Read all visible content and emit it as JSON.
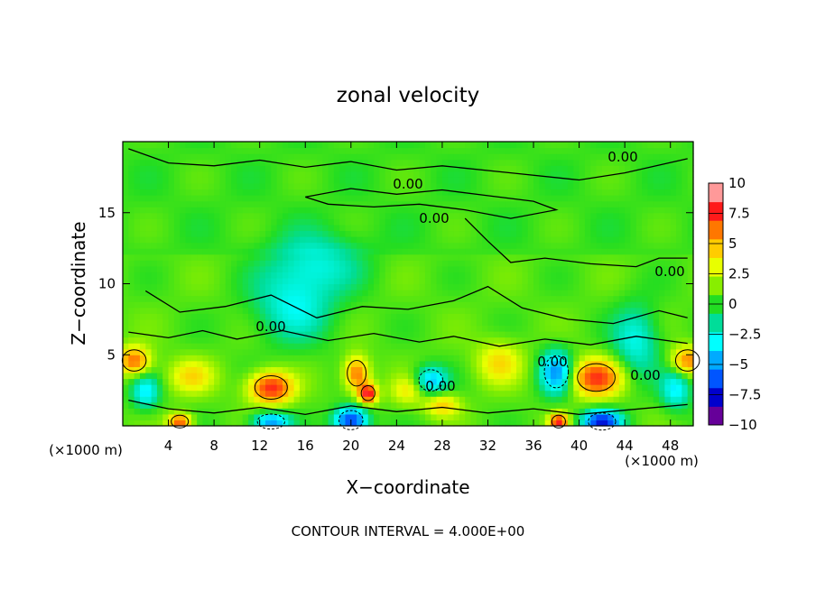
{
  "chart_data": {
    "type": "heatmap",
    "title": "zonal velocity",
    "xlabel": "X−coordinate",
    "ylabel": "Z−coordinate",
    "x_unit_left": "(×1000 m)",
    "x_unit_right": "(×1000 m)",
    "xlim": [
      0,
      50
    ],
    "ylim": [
      0,
      20
    ],
    "x_ticks": [
      "4",
      "8",
      "12",
      "16",
      "20",
      "24",
      "28",
      "32",
      "36",
      "40",
      "44",
      "48"
    ],
    "y_ticks": [
      "5",
      "10",
      "15"
    ],
    "colorbar": {
      "range": [
        -10,
        10
      ],
      "ticks": [
        "10",
        "7.5",
        "5",
        "2.5",
        "0",
        "−2.5",
        "−5",
        "−7.5",
        "−10"
      ],
      "colors": [
        "#ff9999",
        "#ff1a1a",
        "#ff7700",
        "#ffcc00",
        "#e8ff00",
        "#88ee00",
        "#22dd22",
        "#00dd99",
        "#00ffff",
        "#00aaff",
        "#0055ff",
        "#0000cc",
        "#660099"
      ]
    },
    "contour_interval_text": "CONTOUR INTERVAL = 4.000E+00",
    "contour_labels": [
      "0.00",
      "0.00",
      "0.00",
      "0.00",
      "0.00",
      "0.00",
      "0.00",
      "0.00"
    ],
    "features": [
      {
        "x": 13,
        "z": 2.7,
        "value": 7,
        "r": 1.9,
        "rz": 1.1
      },
      {
        "x": 41.5,
        "z": 3.4,
        "value": 6.5,
        "r": 2.2,
        "rz": 1.3
      },
      {
        "x": 20.5,
        "z": 3.7,
        "value": 5.5,
        "r": 1.1,
        "rz": 1.2
      },
      {
        "x": 21.5,
        "z": 2.3,
        "value": 7.5,
        "r": 0.8,
        "rz": 0.7
      },
      {
        "x": 1,
        "z": 4.6,
        "value": 5.5,
        "r": 1.4,
        "rz": 1.0
      },
      {
        "x": 49.5,
        "z": 4.6,
        "value": 5,
        "r": 1.4,
        "rz": 1.0
      },
      {
        "x": 38,
        "z": 3.8,
        "value": -5.5,
        "r": 1.4,
        "rz": 1.5
      },
      {
        "x": 20,
        "z": 0.4,
        "value": -8,
        "r": 1.4,
        "rz": 0.9
      },
      {
        "x": 42,
        "z": 0.3,
        "value": -8.5,
        "r": 1.6,
        "rz": 0.8
      },
      {
        "x": 13,
        "z": 0.3,
        "value": -5.5,
        "r": 1.6,
        "rz": 0.7
      },
      {
        "x": 27,
        "z": 3.2,
        "value": -4.5,
        "r": 1.4,
        "rz": 1.0
      },
      {
        "x": 2,
        "z": 2.4,
        "value": -3.5,
        "r": 1.2,
        "rz": 1.2
      },
      {
        "x": 48.5,
        "z": 2.6,
        "value": -3.5,
        "r": 1.3,
        "rz": 1.4
      },
      {
        "x": 5,
        "z": 0.3,
        "value": 6,
        "r": 1.0,
        "rz": 0.6
      },
      {
        "x": 38.2,
        "z": 0.3,
        "value": 7,
        "r": 0.8,
        "rz": 0.6
      },
      {
        "x": 15,
        "z": 8.5,
        "value": -3,
        "r": 3.5,
        "rz": 2.5
      },
      {
        "x": 17,
        "z": 11.5,
        "value": -2.5,
        "r": 4,
        "rz": 2
      },
      {
        "x": 45,
        "z": 6,
        "value": -3,
        "r": 2,
        "rz": 2.5
      },
      {
        "x": 28,
        "z": 1.5,
        "value": 3.5,
        "r": 1.5,
        "rz": 0.8
      },
      {
        "x": 6,
        "z": 3.5,
        "value": 3,
        "r": 2,
        "rz": 1.2
      },
      {
        "x": 33,
        "z": 4.5,
        "value": 3,
        "r": 2,
        "rz": 1.5
      },
      {
        "x": 25,
        "z": 2.5,
        "value": 2.5,
        "r": 1.5,
        "rz": 1
      }
    ]
  }
}
